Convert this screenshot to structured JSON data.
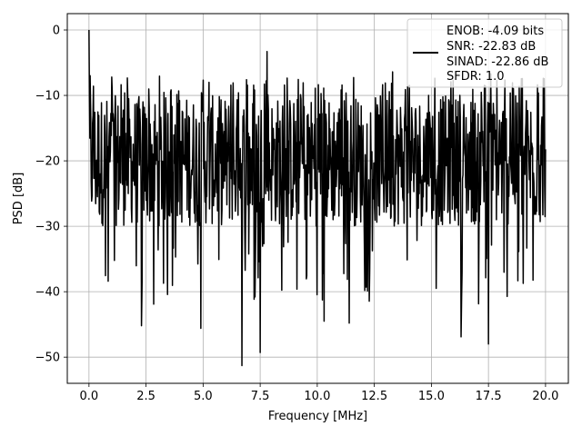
{
  "chart_data": {
    "type": "line",
    "xlabel": "Frequency [MHz]",
    "ylabel": "PSD [dB]",
    "xlim": [
      -0.95,
      21.0
    ],
    "ylim": [
      -54.0,
      2.5
    ],
    "xticks": [
      0.0,
      2.5,
      5.0,
      7.5,
      10.0,
      12.5,
      15.0,
      17.5,
      20.0
    ],
    "xtick_labels": [
      "0.0",
      "2.5",
      "5.0",
      "7.5",
      "10.0",
      "12.5",
      "15.0",
      "17.5",
      "20.0"
    ],
    "yticks": [
      0,
      -10,
      -20,
      -30,
      -40,
      -50
    ],
    "ytick_labels": [
      "0",
      "−10",
      "−20",
      "−30",
      "−40",
      "−50"
    ],
    "grid": true,
    "legend_position": "upper right",
    "legend_lines": [
      "ENOB: -4.09 bits",
      "SNR: -22.83 dB",
      "SINAD: -22.86 dB",
      "SFDR: 1.0"
    ],
    "series_color": "#000000",
    "series": [
      {
        "name": "",
        "sample_count": 1024,
        "x_range": [
          0.0,
          20.0
        ],
        "band_upper_db": -10,
        "band_lower_db": -30,
        "peaks": [
          {
            "x": 0.0,
            "y": 0.0
          },
          {
            "x": 0.05,
            "y": -7.0
          },
          {
            "x": 7.8,
            "y": -3.3
          },
          {
            "x": 13.3,
            "y": -6.4
          },
          {
            "x": 17.6,
            "y": -6.7
          }
        ],
        "dips": [
          {
            "x": 2.3,
            "y": -45.2
          },
          {
            "x": 4.9,
            "y": -45.6
          },
          {
            "x": 6.7,
            "y": -51.3
          },
          {
            "x": 7.5,
            "y": -49.3
          },
          {
            "x": 10.3,
            "y": -44.5
          },
          {
            "x": 11.4,
            "y": -44.8
          },
          {
            "x": 16.3,
            "y": -46.9
          },
          {
            "x": 17.5,
            "y": -48.0
          }
        ]
      }
    ]
  }
}
